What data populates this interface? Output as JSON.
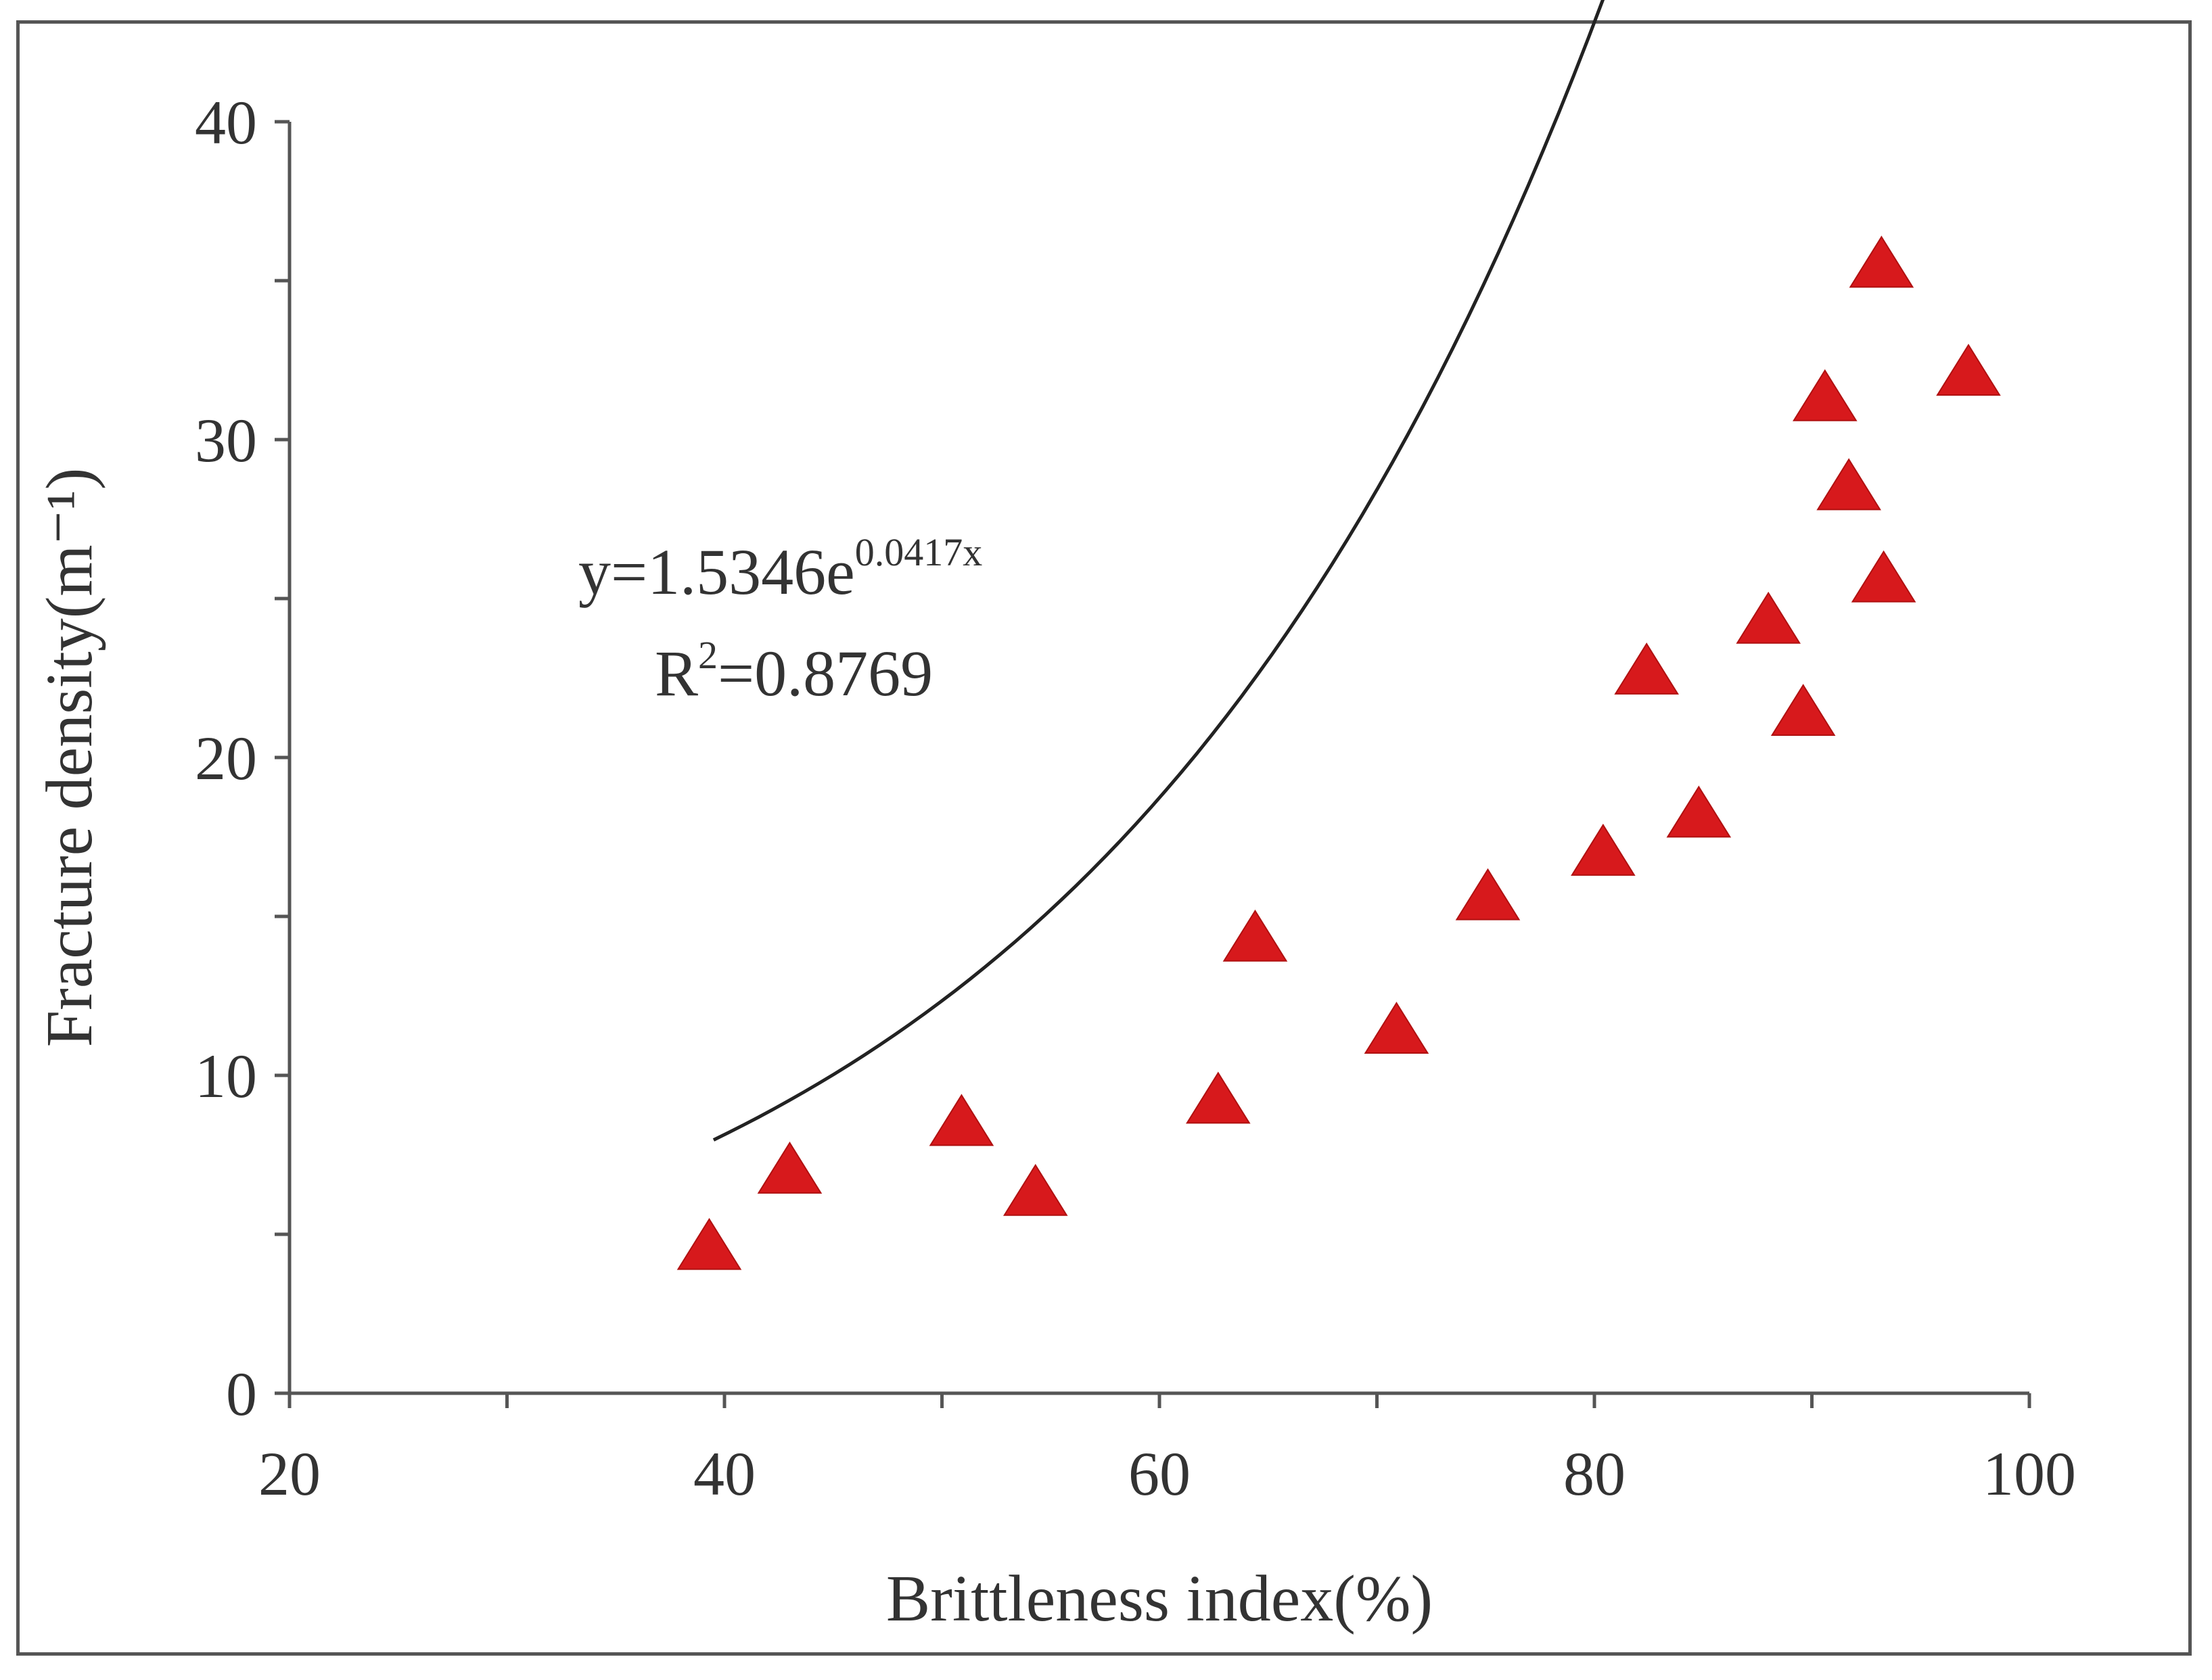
{
  "chart_data": {
    "type": "scatter",
    "xlabel": "Brittleness index(%)",
    "ylabel": "Fracture density(m⁻¹)",
    "xlim": [
      20,
      100
    ],
    "ylim": [
      0,
      40
    ],
    "xticks": [
      20,
      40,
      60,
      80,
      100
    ],
    "yticks": [
      0,
      10,
      20,
      30,
      40
    ],
    "marker_color": "#d7191c",
    "line_color": "#222222",
    "series": [
      {
        "name": "Fracture density",
        "marker": "triangle",
        "points": [
          {
            "x": 39.3,
            "y": 4.5
          },
          {
            "x": 43.0,
            "y": 6.9
          },
          {
            "x": 50.9,
            "y": 8.4
          },
          {
            "x": 54.3,
            "y": 6.2
          },
          {
            "x": 62.7,
            "y": 9.1
          },
          {
            "x": 64.4,
            "y": 14.2
          },
          {
            "x": 70.9,
            "y": 11.3
          },
          {
            "x": 75.1,
            "y": 15.5
          },
          {
            "x": 80.4,
            "y": 16.9
          },
          {
            "x": 82.4,
            "y": 22.6
          },
          {
            "x": 84.8,
            "y": 18.1
          },
          {
            "x": 88.0,
            "y": 24.2
          },
          {
            "x": 89.6,
            "y": 21.3
          },
          {
            "x": 90.6,
            "y": 31.2
          },
          {
            "x": 91.7,
            "y": 28.4
          },
          {
            "x": 93.2,
            "y": 35.4
          },
          {
            "x": 93.3,
            "y": 25.5
          },
          {
            "x": 97.2,
            "y": 32.0
          }
        ]
      }
    ],
    "fit": {
      "type": "exponential",
      "a": 1.5346,
      "b": 0.0417,
      "x_range": [
        39.5,
        95.0
      ],
      "equation_prefix": "y=1.5346e",
      "equation_exponent": "0.0417x",
      "r2_prefix": "R",
      "r2_sup": "2",
      "r2_value": "=0.8769"
    }
  }
}
